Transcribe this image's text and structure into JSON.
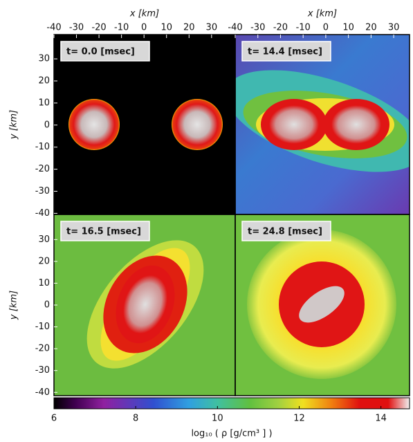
{
  "chart_data": [
    {
      "type": "heatmap",
      "annotation": "t=  0.0 [msec]",
      "xlabel": "x [km]",
      "ylabel": "y [km]",
      "xlim": [
        -40,
        40.5
      ],
      "ylim": [
        -40.5,
        41
      ],
      "xticks": [
        -40,
        -30,
        -20,
        -10,
        0,
        10,
        20,
        30
      ],
      "yticks": [
        -40,
        -30,
        -20,
        -10,
        0,
        10,
        20,
        30
      ]
    },
    {
      "type": "heatmap",
      "annotation": "t= 14.4 [msec]",
      "xlabel": "x [km]",
      "xlim": [
        -40,
        37
      ],
      "ylim": [
        -40.5,
        41
      ],
      "xticks": [
        -40,
        -30,
        -20,
        -10,
        0,
        10,
        20,
        30
      ]
    },
    {
      "type": "heatmap",
      "annotation": "t= 16.5 [msec]",
      "ylabel": "y [km]",
      "xlim": [
        -40,
        40.5
      ],
      "ylim": [
        -41.5,
        41.5
      ],
      "yticks": [
        -40,
        -30,
        -20,
        -10,
        0,
        10,
        20,
        30
      ]
    },
    {
      "type": "heatmap",
      "annotation": "t= 24.8 [msec]",
      "xlim": [
        -40,
        37
      ],
      "ylim": [
        -41.5,
        41.5
      ]
    },
    {
      "type": "colorbar",
      "xlabel": "log₁₀ ( ρ [g/cm³ ] )",
      "xlim": [
        6,
        14.7
      ],
      "xticks": [
        6,
        8,
        10,
        12,
        14
      ]
    }
  ]
}
